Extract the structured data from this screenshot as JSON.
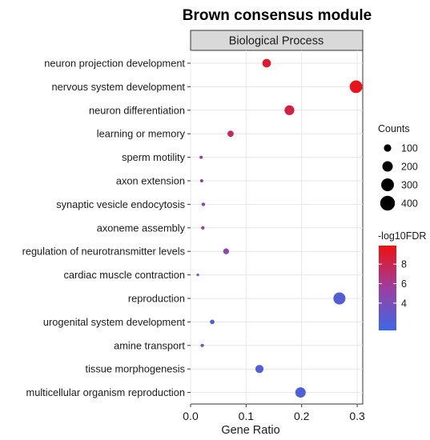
{
  "chart_data": {
    "type": "scatter",
    "title": "Brown consensus module",
    "facet": "Biological Process",
    "xlabel": "Gene Ratio",
    "ylabel": "",
    "xlim": [
      0,
      0.31
    ],
    "x_ticks": [
      "0.0",
      "0.1",
      "0.2",
      "0.3"
    ],
    "x_tick_values": [
      0,
      0.1,
      0.2,
      0.3
    ],
    "grid": true,
    "categories": [
      "neuron projection development",
      "nervous system development",
      "neuron differentiation",
      "learning or memory",
      "sperm motility",
      "axon extension",
      "synaptic vesicle endocytosis",
      "axoneme assembly",
      "regulation of neurotransmitter levels",
      "cardiac muscle contraction",
      "reproduction",
      "urogenital system development",
      "amine transport",
      "tissue morphogenesis",
      "multicellular organism reproduction"
    ],
    "points": [
      {
        "term": "neuron projection development",
        "gene_ratio": 0.137,
        "count": 135,
        "neg_log10_fdr": 9.0
      },
      {
        "term": "nervous system development",
        "gene_ratio": 0.298,
        "count": 295,
        "neg_log10_fdr": 9.5
      },
      {
        "term": "neuron differentiation",
        "gene_ratio": 0.178,
        "count": 178,
        "neg_log10_fdr": 8.3
      },
      {
        "term": "learning or memory",
        "gene_ratio": 0.072,
        "count": 72,
        "neg_log10_fdr": 7.6
      },
      {
        "term": "sperm motility",
        "gene_ratio": 0.019,
        "count": 19,
        "neg_log10_fdr": 5.0
      },
      {
        "term": "axon extension",
        "gene_ratio": 0.02,
        "count": 20,
        "neg_log10_fdr": 4.9
      },
      {
        "term": "synaptic vesicle endocytosis",
        "gene_ratio": 0.023,
        "count": 23,
        "neg_log10_fdr": 4.8
      },
      {
        "term": "axoneme assembly",
        "gene_ratio": 0.022,
        "count": 22,
        "neg_log10_fdr": 4.7
      },
      {
        "term": "regulation of neurotransmitter levels",
        "gene_ratio": 0.064,
        "count": 64,
        "neg_log10_fdr": 4.5
      },
      {
        "term": "cardiac muscle contraction",
        "gene_ratio": 0.013,
        "count": 13,
        "neg_log10_fdr": 2.4
      },
      {
        "term": "reproduction",
        "gene_ratio": 0.268,
        "count": 268,
        "neg_log10_fdr": 2.3
      },
      {
        "term": "urogenital system development",
        "gene_ratio": 0.039,
        "count": 39,
        "neg_log10_fdr": 2.2
      },
      {
        "term": "amine transport",
        "gene_ratio": 0.021,
        "count": 21,
        "neg_log10_fdr": 2.2
      },
      {
        "term": "tissue morphogenesis",
        "gene_ratio": 0.124,
        "count": 124,
        "neg_log10_fdr": 2.1
      },
      {
        "term": "multicellular organism reproduction",
        "gene_ratio": 0.198,
        "count": 198,
        "neg_log10_fdr": 2.0
      }
    ],
    "size_legend": {
      "title": "Counts",
      "values": [
        100,
        200,
        300,
        400
      ],
      "labels": [
        "100",
        "200",
        "300",
        "400"
      ]
    },
    "color_legend": {
      "title": "-log10FDR",
      "range": [
        1.2,
        9.9
      ],
      "ticks": [
        4,
        6,
        8
      ],
      "labels": [
        "4",
        "6",
        "8"
      ],
      "low_color": "#3c68e6",
      "high_color": "#f01010"
    }
  }
}
